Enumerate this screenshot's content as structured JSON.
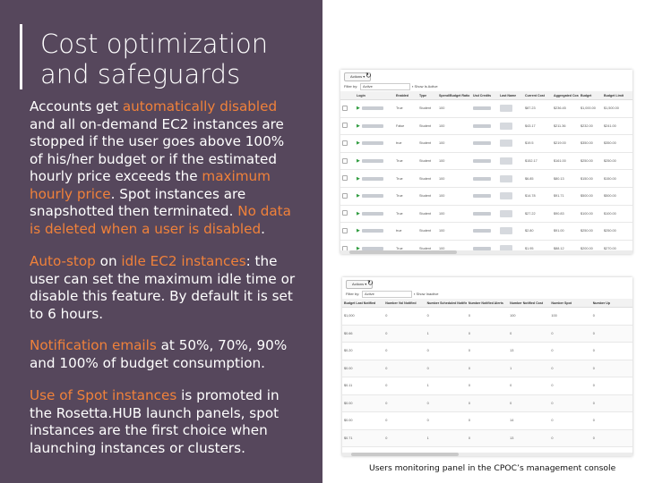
{
  "slide": {
    "title": "Cost optimization and safeguards",
    "para1": {
      "p1": "Accounts get ",
      "h1": "automatically disabled",
      "p2": " and all on-demand EC2 instances are stopped if the user goes above 100% of his/her budget or if the estimated hourly price exceeds the ",
      "h2": "maximum hourly price",
      "p3": ". Spot instances are snapshotted then terminated. ",
      "h3": "No data is deleted when a user is disabled",
      "p4": "."
    },
    "para2": {
      "h1": "Auto-stop",
      "p1": " on ",
      "h2": "idle EC2 instances",
      "p2": ": the user can set the maximum idle time or disable this feature. By default it is set to 6 hours."
    },
    "para3": {
      "h1": "Notification emails",
      "p1": " at 50%, 70%, 90% and 100% of budget consumption."
    },
    "para4": {
      "h1": "Use of Spot instances",
      "p1": " is promoted in the Rosetta.HUB launch panels, spot instances are the first choice when launching instances or clusters."
    },
    "caption": "Users monitoring panel in the CPOC’s management console",
    "colors": {
      "panel_bg": "#56475c",
      "highlight": "#f0813a",
      "text": "#ffffff"
    }
  },
  "users_panel": {
    "actions_label": "Actions ▾",
    "refresh_icon": "↻",
    "filter_label": "Filter by:",
    "filter_value": "Active",
    "checkbox_label": "Show Is Active",
    "columns": [
      "Login",
      "Enabled",
      "Type",
      "Spend/Budget Ratio",
      "Usd Credits",
      "Last Name",
      "Current Cost",
      "Aggregated Cost ▾",
      "Budget",
      "Budget Limit"
    ],
    "rows": [
      [
        "True",
        "Student",
        "100",
        "$87.23",
        "$236.45",
        "$1,000.00",
        "$1,500.00"
      ],
      [
        "False",
        "Student",
        "100",
        "$43.17",
        "$211.36",
        "$232.00",
        "$241.00"
      ],
      [
        "true",
        "Student",
        "100",
        "$19.5",
        "$219.00",
        "$350.00",
        "$350.00"
      ],
      [
        "True",
        "Student",
        "100",
        "$152.17",
        "$161.00",
        "$250.00",
        "$250.00"
      ],
      [
        "True",
        "Student",
        "100",
        "$6.85",
        "$80.13",
        "$150.00",
        "$150.00"
      ],
      [
        "True",
        "Student",
        "100",
        "$14.78",
        "$91.71",
        "$500.00",
        "$500.00"
      ],
      [
        "True",
        "Student",
        "100",
        "$27.22",
        "$90.83",
        "$100.00",
        "$100.00"
      ],
      [
        "true",
        "Student",
        "100",
        "$2.80",
        "$91.00",
        "$250.00",
        "$250.00"
      ],
      [
        "True",
        "Student",
        "100",
        "$1.95",
        "$88.12",
        "$200.00",
        "$270.00"
      ]
    ]
  },
  "monitor_panel": {
    "actions_label": "Actions ▾",
    "refresh_icon": "↻",
    "filter_label": "Filter by:",
    "filter_value": "Active",
    "checkbox_label": "Show Inactive",
    "columns": [
      "Budget Last Notified",
      "Number Vol Notified",
      "Number Scheduled Notified",
      "Number Notified Alerts",
      "Number Notified Cost",
      "Number Spot",
      "Number Up"
    ],
    "rows": [
      [
        "$1,000",
        "0",
        "0",
        "0",
        "100",
        "100",
        "0"
      ],
      [
        "$0.66",
        "0",
        "1",
        "0",
        "0",
        "0",
        "0"
      ],
      [
        "$0.20",
        "0",
        "0",
        "0",
        "13",
        "0",
        "0"
      ],
      [
        "$0.00",
        "0",
        "0",
        "0",
        "1",
        "0",
        "0"
      ],
      [
        "$0.11",
        "0",
        "1",
        "0",
        "0",
        "0",
        "0"
      ],
      [
        "$0.00",
        "0",
        "0",
        "0",
        "0",
        "0",
        "0"
      ],
      [
        "$0.00",
        "0",
        "0",
        "0",
        "14",
        "0",
        "0"
      ],
      [
        "$0.71",
        "0",
        "1",
        "0",
        "13",
        "0",
        "0"
      ],
      [
        "$0.00",
        "0",
        "0",
        "0",
        "0",
        "13",
        "0"
      ]
    ]
  }
}
